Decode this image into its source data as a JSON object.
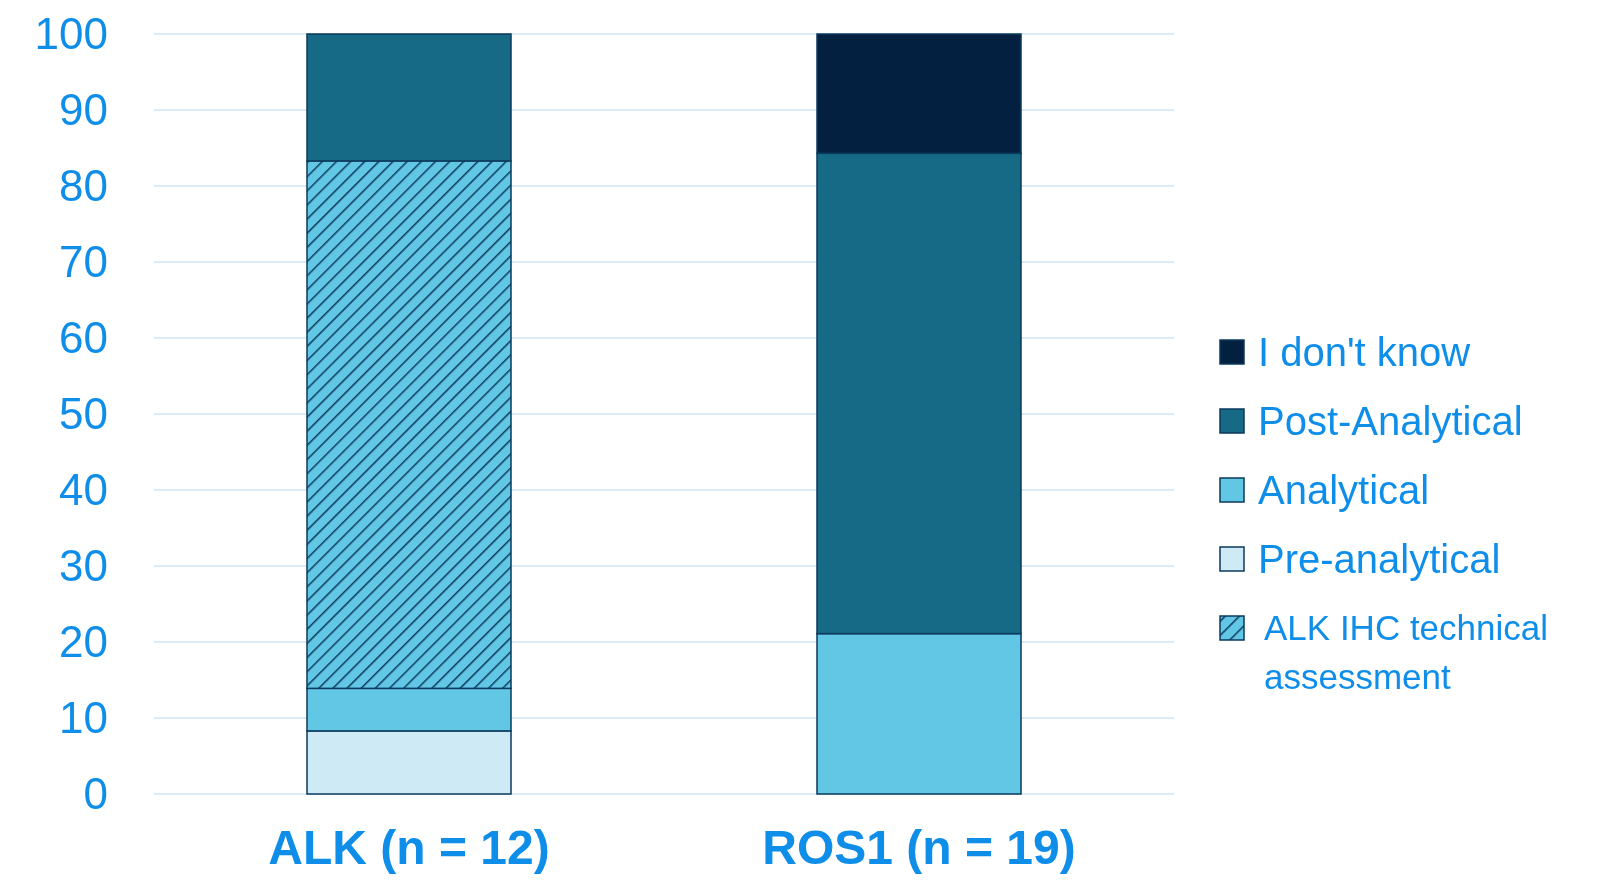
{
  "chart_data": {
    "type": "bar",
    "stacked": true,
    "categories": [
      "ALK (n = 12)",
      "ROS1 (n = 19)"
    ],
    "series": [
      {
        "name": "Pre-analytical",
        "color": "#cdeaf5",
        "values": [
          8.3,
          0
        ]
      },
      {
        "name": "Analytical",
        "color": "#62c6e5",
        "values": [
          5.6,
          21.1
        ]
      },
      {
        "name": "ALK IHC technical assessment",
        "color": "#62c6e5",
        "values": [
          69.4,
          0
        ]
      },
      {
        "name": "Post-Analytical",
        "color": "#176a85",
        "values": [
          16.7,
          63.2
        ]
      },
      {
        "name": "I don't know",
        "color": "#032040",
        "values": [
          0,
          15.7
        ]
      }
    ],
    "ylim": [
      0,
      100
    ],
    "yticks": [
      0,
      10,
      20,
      30,
      40,
      50,
      60,
      70,
      80,
      90,
      100
    ],
    "grid": "y",
    "legend": "right"
  }
}
